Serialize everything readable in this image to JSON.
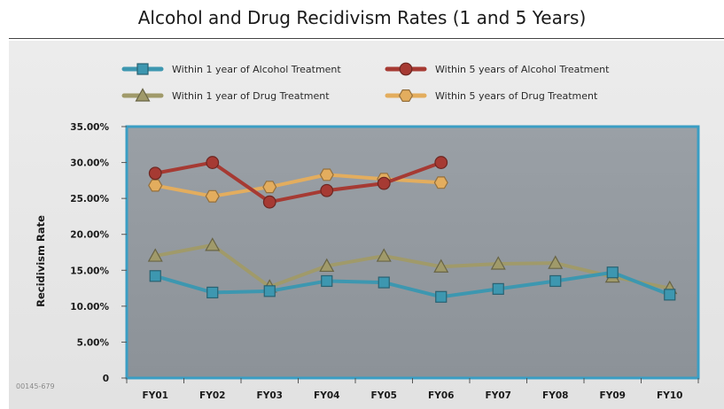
{
  "footnote": "00145-679",
  "chart_data": {
    "type": "line",
    "title": "Alcohol and Drug Recidivism Rates (1 and 5 Years)",
    "xlabel": "",
    "ylabel": "Recidivism Rate",
    "categories": [
      "FY01",
      "FY02",
      "FY03",
      "FY04",
      "FY05",
      "FY06",
      "FY07",
      "FY08",
      "FY09",
      "FY10"
    ],
    "ylim": [
      0,
      35
    ],
    "yticks": [
      0,
      5,
      10,
      15,
      20,
      25,
      30,
      35
    ],
    "ytick_labels": [
      "0",
      "5.00%",
      "10.00%",
      "15.00%",
      "20.00%",
      "25.00%",
      "30.00%",
      "35.00%"
    ],
    "grid": false,
    "legend_position": "top",
    "series": [
      {
        "name": "Within 1 year of Alcohol Treatment",
        "marker": "square",
        "color": "#3d97b0",
        "values": [
          14.2,
          11.9,
          12.1,
          13.5,
          13.3,
          11.3,
          12.4,
          13.5,
          14.7,
          11.6
        ]
      },
      {
        "name": "Within 5 years of Alcohol Treatment",
        "marker": "circle",
        "color": "#a63a33",
        "values": [
          28.5,
          30.0,
          24.5,
          26.1,
          27.1,
          30.0,
          null,
          null,
          null,
          null
        ]
      },
      {
        "name": "Within 1 year of Drug Treatment",
        "marker": "triangle",
        "color": "#a09a6a",
        "values": [
          17.0,
          18.5,
          12.7,
          15.6,
          17.0,
          15.5,
          15.9,
          16.0,
          14.1,
          12.5
        ]
      },
      {
        "name": "Within 5 years of Drug Treatment",
        "marker": "hexagon",
        "color": "#e3ad5e",
        "values": [
          26.8,
          25.3,
          26.6,
          28.3,
          27.7,
          27.2,
          null,
          null,
          null,
          null
        ]
      }
    ],
    "legend_order": [
      0,
      1,
      2,
      3
    ]
  }
}
